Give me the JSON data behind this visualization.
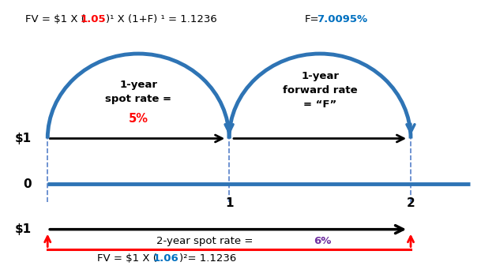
{
  "fig_width": 6.09,
  "fig_height": 3.51,
  "dpi": 100,
  "bg_color": "#ffffff",
  "arc_color": "#2e74b5",
  "timeline_color": "#2e74b5",
  "dash_color": "#4472c4",
  "black": "#000000",
  "red": "#ff0000",
  "blue": "#0070c0",
  "purple": "#7030a0",
  "t0_x": 1.0,
  "t1_x": 5.0,
  "t2_x": 9.0,
  "upper_y": 4.0,
  "timeline_y": 2.5,
  "lower_y": 1.0,
  "xlim": [
    0.0,
    10.5
  ],
  "ylim": [
    -0.5,
    8.5
  ]
}
